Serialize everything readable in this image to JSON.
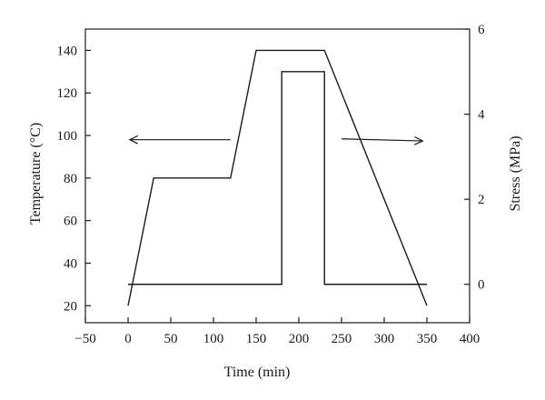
{
  "chart_data": {
    "type": "line",
    "xlabel": "Time (min)",
    "ylabel_left": "Temperature (°C)",
    "ylabel_right": "Stress (MPa)",
    "xlim": [
      -50,
      400
    ],
    "ylim_left": [
      12,
      150
    ],
    "ylim_right": [
      -0.903,
      6
    ],
    "xticks": [
      -50,
      0,
      50,
      100,
      150,
      200,
      250,
      300,
      350,
      400
    ],
    "xtick_labels": [
      "−50",
      "0",
      "50",
      "100",
      "150",
      "200",
      "250",
      "300",
      "350",
      "400"
    ],
    "yticks_left": [
      20,
      40,
      60,
      80,
      100,
      120,
      140
    ],
    "ytick_labels_left": [
      "20",
      "40",
      "60",
      "80",
      "100",
      "120",
      "140"
    ],
    "yticks_right": [
      0,
      2,
      4,
      6
    ],
    "ytick_labels_right": [
      "0",
      "2",
      "4",
      "6"
    ],
    "grid": false,
    "legend": "none",
    "line_color": "#1a1a1a",
    "series": [
      {
        "axis": "left",
        "x": [
          0,
          30,
          120,
          150,
          230,
          350
        ],
        "y": [
          20,
          80,
          80,
          140,
          140,
          20
        ]
      },
      {
        "axis": "right",
        "x": [
          0,
          180,
          180,
          230,
          230,
          350
        ],
        "y": [
          0,
          0,
          5,
          5,
          0,
          0
        ]
      }
    ],
    "annotations": [
      {
        "type": "arrow",
        "direction": "left",
        "points_to": "left axis",
        "x_start": 120,
        "x_end": 2,
        "y": 98,
        "axis": "left"
      },
      {
        "type": "arrow",
        "direction": "right",
        "points_to": "right axis",
        "x_start": 250,
        "x_end": 345,
        "y_start": 3.42,
        "y_end": 3.37,
        "axis": "right"
      }
    ]
  }
}
